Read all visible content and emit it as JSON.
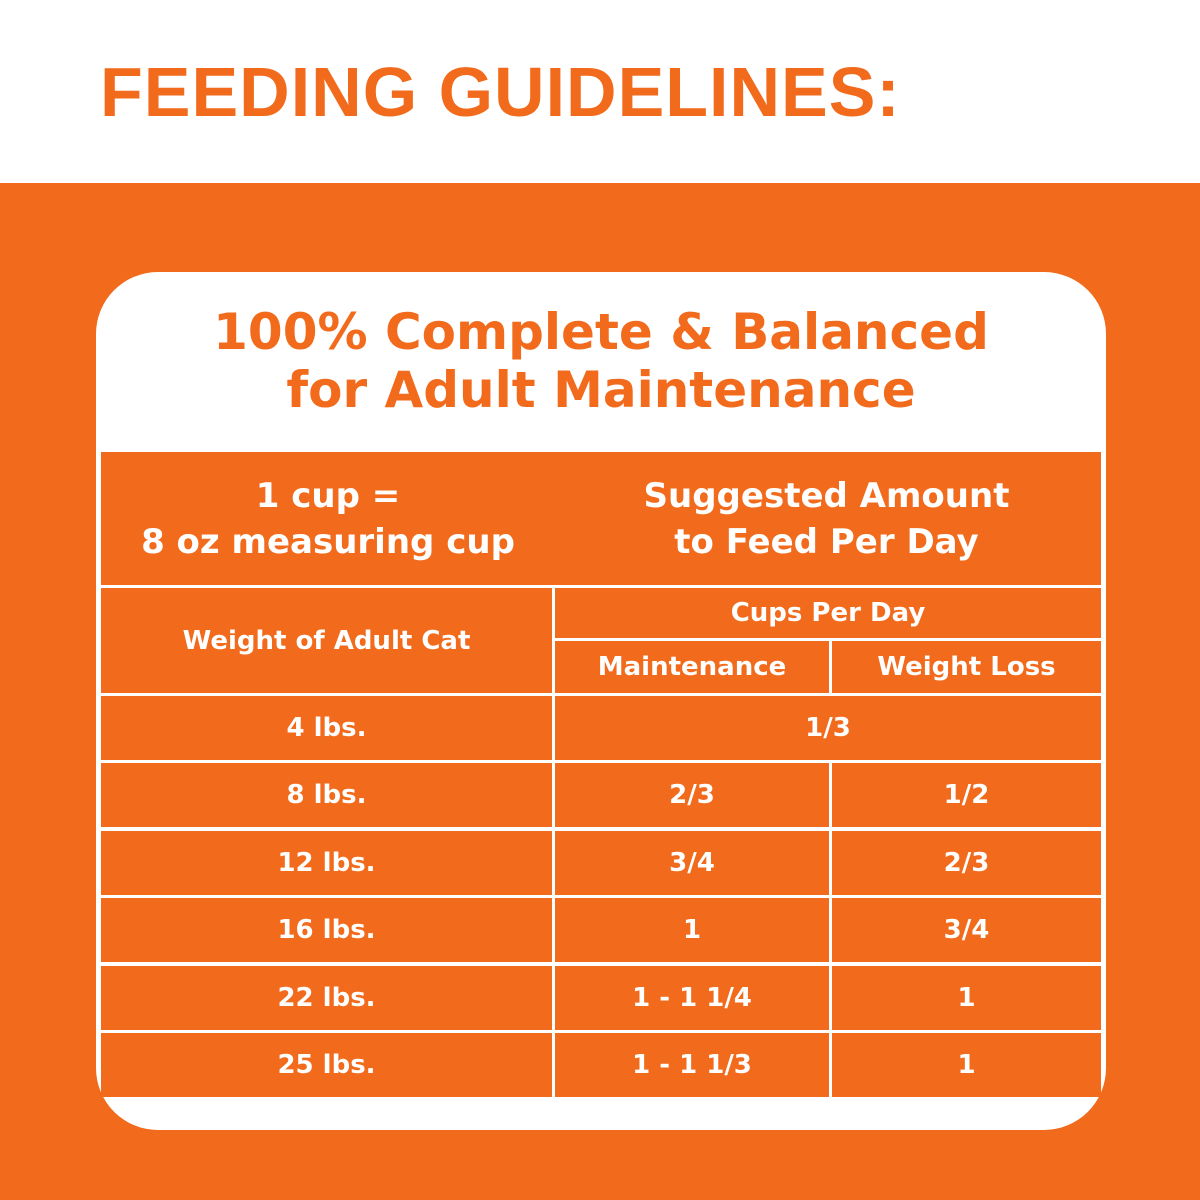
{
  "header": {
    "title": "FEEDING GUIDELINES:"
  },
  "card": {
    "title": [
      "100% Complete & Balanced",
      "for Adult Maintenance"
    ]
  },
  "table": {
    "note": [
      "1 cup =",
      "8 oz measuring cup"
    ],
    "heading": [
      "Suggested Amount",
      "to Feed Per Day"
    ],
    "columns": {
      "weight": "Weight of Adult Cat",
      "cups": "Cups Per Day",
      "maintenance": "Maintenance",
      "weight_loss": "Weight Loss"
    },
    "rows": [
      [
        "4 lbs.",
        "1/3"
      ],
      [
        "8 lbs.",
        "2/3",
        "1/2"
      ],
      [
        "12 lbs.",
        "3/4",
        "2/3"
      ],
      [
        "16 lbs.",
        "1",
        "3/4"
      ],
      [
        "22 lbs.",
        "1 - 1 1/4",
        "1"
      ],
      [
        "25 lbs.",
        "1 - 1 1/3",
        "1"
      ]
    ]
  }
}
